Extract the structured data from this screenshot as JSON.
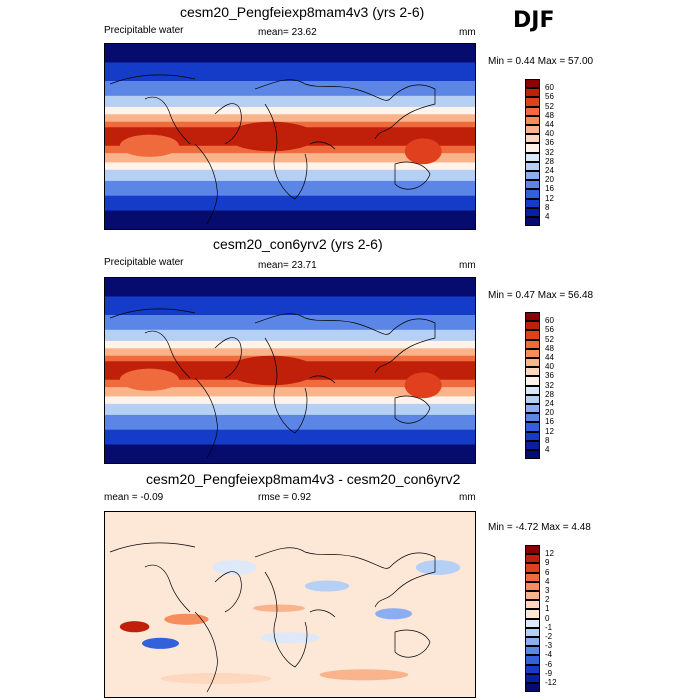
{
  "season": "DJF",
  "panels": [
    {
      "title": "cesm20_Pengfeiexp8mam4v3 (yrs 2-6)",
      "left_label": "Precipitable water",
      "center_label": "mean=  23.62",
      "units": "mm",
      "minmax": "Min =   0.44 Max =  57.00",
      "colorbar_levels": [
        "60",
        "56",
        "52",
        "48",
        "44",
        "40",
        "36",
        "32",
        "28",
        "24",
        "20",
        "16",
        "12",
        "8",
        "4"
      ],
      "colorbar_colors": [
        "#8b0000",
        "#c0200a",
        "#e0401e",
        "#ef6a3c",
        "#f58e5c",
        "#fab48c",
        "#fdd8bf",
        "#fff3ea",
        "#dbe8fb",
        "#b5cff5",
        "#8aaef0",
        "#5b86e6",
        "#3360db",
        "#153cc9",
        "#0a1f9e",
        "#050c6e"
      ],
      "map_type": "base"
    },
    {
      "title": "cesm20_con6yrv2 (yrs 2-6)",
      "left_label": "Precipitable water",
      "center_label": "mean=  23.71",
      "units": "mm",
      "minmax": "Min =   0.47 Max =  56.48",
      "colorbar_levels": [
        "60",
        "56",
        "52",
        "48",
        "44",
        "40",
        "36",
        "32",
        "28",
        "24",
        "20",
        "16",
        "12",
        "8",
        "4"
      ],
      "colorbar_colors": [
        "#8b0000",
        "#c0200a",
        "#e0401e",
        "#ef6a3c",
        "#f58e5c",
        "#fab48c",
        "#fdd8bf",
        "#fff3ea",
        "#dbe8fb",
        "#b5cff5",
        "#8aaef0",
        "#5b86e6",
        "#3360db",
        "#153cc9",
        "#0a1f9e",
        "#050c6e"
      ],
      "map_type": "base"
    },
    {
      "title": "cesm20_Pengfeiexp8mam4v3 - cesm20_con6yrv2",
      "left_label": "mean =  -0.09",
      "center_label": "rmse =   0.92",
      "units": "mm",
      "minmax": "Min =  -4.72 Max =   4.48",
      "colorbar_levels": [
        "12",
        "9",
        "6",
        "4",
        "3",
        "2",
        "1",
        "0",
        "-1",
        "-2",
        "-3",
        "-4",
        "-6",
        "-9",
        "-12"
      ],
      "colorbar_colors": [
        "#8b0000",
        "#c0200a",
        "#e0401e",
        "#ef6a3c",
        "#f58e5c",
        "#fab48c",
        "#fdd8bf",
        "#fde8d8",
        "#dde8f8",
        "#b5cff5",
        "#8aaef0",
        "#5b86e6",
        "#3360db",
        "#153cc9",
        "#0a1f9e",
        "#050c6e"
      ],
      "map_type": "diff"
    }
  ]
}
